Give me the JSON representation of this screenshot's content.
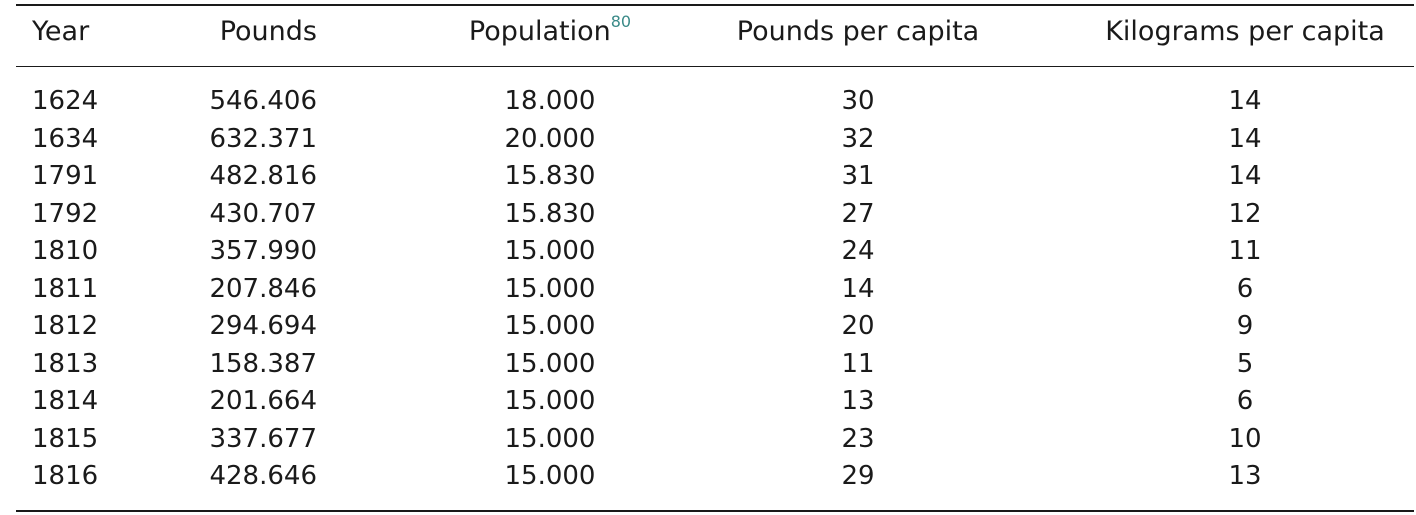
{
  "table": {
    "headers": {
      "year": "Year",
      "pounds": "Pounds",
      "population": "Population",
      "population_footnote": "80",
      "pounds_per_capita": "Pounds per capita",
      "kilograms_per_capita": "Kilograms per capita"
    },
    "rows": [
      {
        "year": "1624",
        "pounds": "546.406",
        "population": "18.000",
        "pounds_per_capita": "30",
        "kilograms_per_capita": "14"
      },
      {
        "year": "1634",
        "pounds": "632.371",
        "population": "20.000",
        "pounds_per_capita": "32",
        "kilograms_per_capita": "14"
      },
      {
        "year": "1791",
        "pounds": "482.816",
        "population": "15.830",
        "pounds_per_capita": "31",
        "kilograms_per_capita": "14"
      },
      {
        "year": "1792",
        "pounds": "430.707",
        "population": "15.830",
        "pounds_per_capita": "27",
        "kilograms_per_capita": "12"
      },
      {
        "year": "1810",
        "pounds": "357.990",
        "population": "15.000",
        "pounds_per_capita": "24",
        "kilograms_per_capita": "11"
      },
      {
        "year": "1811",
        "pounds": "207.846",
        "population": "15.000",
        "pounds_per_capita": "14",
        "kilograms_per_capita": "6"
      },
      {
        "year": "1812",
        "pounds": "294.694",
        "population": "15.000",
        "pounds_per_capita": "20",
        "kilograms_per_capita": "9"
      },
      {
        "year": "1813",
        "pounds": "158.387",
        "population": "15.000",
        "pounds_per_capita": "11",
        "kilograms_per_capita": "5"
      },
      {
        "year": "1814",
        "pounds": "201.664",
        "population": "15.000",
        "pounds_per_capita": "13",
        "kilograms_per_capita": "6"
      },
      {
        "year": "1815",
        "pounds": "337.677",
        "population": "15.000",
        "pounds_per_capita": "23",
        "kilograms_per_capita": "10"
      },
      {
        "year": "1816",
        "pounds": "428.646",
        "population": "15.000",
        "pounds_per_capita": "29",
        "kilograms_per_capita": "13"
      }
    ]
  },
  "colors": {
    "text": "#1a1a1a",
    "footnote_link": "#3a8a88"
  }
}
